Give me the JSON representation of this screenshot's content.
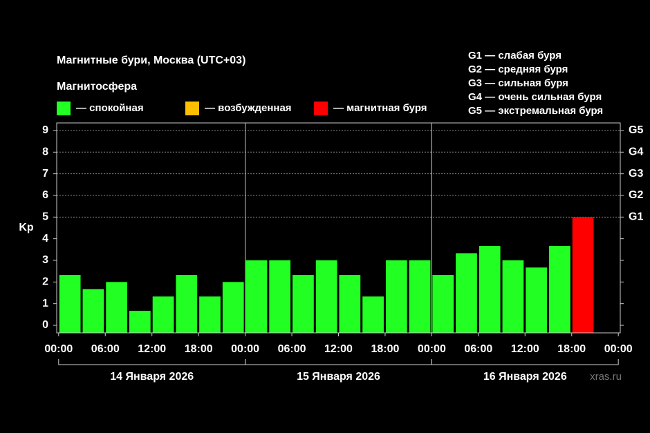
{
  "chart_data": {
    "type": "bar",
    "title": "Магнитные бури, Москва (UTC+03)",
    "legend": {
      "title": "Магнитосфера",
      "items": [
        {
          "label": "— спокойная",
          "color": "#22ff22"
        },
        {
          "label": "— возбужденная",
          "color": "#ffbf00"
        },
        {
          "label": "— магнитная буря",
          "color": "#ff0000"
        }
      ]
    },
    "g_scale": [
      "G1 — слабая буря",
      "G2 — средняя буря",
      "G3 — сильная буря",
      "G4 — очень сильная буря",
      "G5 — экстремальная буря"
    ],
    "y_label": "Kp",
    "x": [
      0,
      3,
      6,
      9,
      12,
      15,
      18,
      21,
      24,
      27,
      30,
      33,
      36,
      39,
      42,
      45,
      48,
      51,
      54,
      57,
      60,
      63,
      66
    ],
    "values": [
      2.33,
      1.67,
      2,
      0.67,
      1.33,
      2.33,
      1.33,
      2,
      3,
      3,
      2.33,
      3,
      2.33,
      1.33,
      3,
      3,
      2.33,
      3.33,
      3.67,
      3,
      2.67,
      3.67,
      5
    ],
    "bar_colors": [
      "#22ff22",
      "#22ff22",
      "#22ff22",
      "#22ff22",
      "#22ff22",
      "#22ff22",
      "#22ff22",
      "#22ff22",
      "#22ff22",
      "#22ff22",
      "#22ff22",
      "#22ff22",
      "#22ff22",
      "#22ff22",
      "#22ff22",
      "#22ff22",
      "#22ff22",
      "#22ff22",
      "#22ff22",
      "#22ff22",
      "#22ff22",
      "#22ff22",
      "#ff0000"
    ],
    "bar_width": 3,
    "xlim": [
      -0.25,
      72.25
    ],
    "xticks": [
      {
        "value": 0,
        "label": "00:00"
      },
      {
        "value": 6,
        "label": "06:00"
      },
      {
        "value": 12,
        "label": "12:00"
      },
      {
        "value": 18,
        "label": "18:00"
      },
      {
        "value": 24,
        "label": "00:00"
      },
      {
        "value": 30,
        "label": "06:00"
      },
      {
        "value": 36,
        "label": "12:00"
      },
      {
        "value": 42,
        "label": "18:00"
      },
      {
        "value": 48,
        "label": "00:00"
      },
      {
        "value": 54,
        "label": "06:00"
      },
      {
        "value": 60,
        "label": "12:00"
      },
      {
        "value": 66,
        "label": "18:00"
      },
      {
        "value": 72,
        "label": "00:00"
      }
    ],
    "day_lines": [
      24,
      48
    ],
    "day_labels": [
      "14 Января 2026",
      "15 Января 2026",
      "16 Января 2026"
    ],
    "ylim": [
      -0.35,
      9.35
    ],
    "yticks": [
      0,
      1,
      2,
      3,
      4,
      5,
      6,
      7,
      8,
      9
    ],
    "y2lim": [
      -0.35,
      9.35
    ],
    "y2ticks": [
      {
        "value": 5,
        "label": "G1"
      },
      {
        "value": 6,
        "label": "G2"
      },
      {
        "value": 7,
        "label": "G3"
      },
      {
        "value": 8,
        "label": "G4"
      },
      {
        "value": 9,
        "label": "G5"
      }
    ],
    "watermark": "xras.ru"
  }
}
